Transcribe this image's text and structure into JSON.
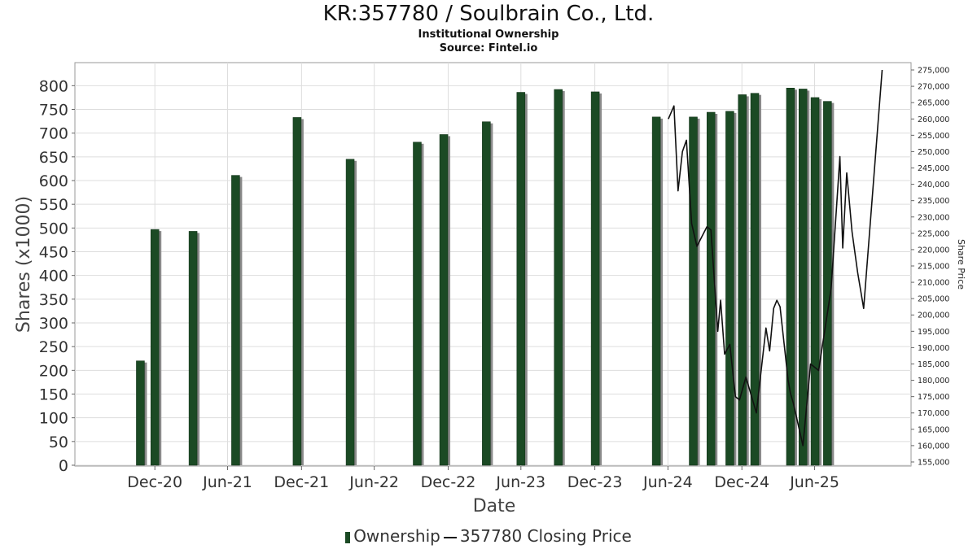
{
  "header": {
    "title": "KR:357780 / Soulbrain Co., Ltd.",
    "subtitle": "Institutional Ownership",
    "source": "Source: Fintel.io"
  },
  "colors": {
    "bar": "#1b4a24",
    "bar_shadow": "#8a8a8a",
    "line": "#111111",
    "grid": "#dddddd"
  },
  "chart_data": {
    "type": "bar",
    "xlabel": "Date",
    "ylabel": "Shares (x1000)",
    "y2label": "Share Price",
    "ylim": [
      0,
      840
    ],
    "y_ticks": [
      0,
      50,
      100,
      150,
      200,
      250,
      300,
      350,
      400,
      450,
      500,
      550,
      600,
      650,
      700,
      750,
      800
    ],
    "y2lim": [
      154000,
      276000
    ],
    "y2_ticks": [
      "155,000",
      "160,000",
      "165,000",
      "170,000",
      "175,000",
      "180,000",
      "185,000",
      "190,000",
      "195,000",
      "200,000",
      "205,000",
      "210,000",
      "215,000",
      "220,000",
      "225,000",
      "230,000",
      "235,000",
      "240,000",
      "245,000",
      "250,000",
      "255,000",
      "260,000",
      "265,000",
      "270,000",
      "275,000"
    ],
    "x_range": [
      "2020-06-15",
      "2026-02-25"
    ],
    "x_ticks": [
      {
        "date": "2020-12-31",
        "label": "Dec-20"
      },
      {
        "date": "2021-06-30",
        "label": "Jun-21"
      },
      {
        "date": "2021-12-31",
        "label": "Dec-21"
      },
      {
        "date": "2022-06-30",
        "label": "Jun-22"
      },
      {
        "date": "2022-12-31",
        "label": "Dec-22"
      },
      {
        "date": "2023-06-30",
        "label": "Jun-23"
      },
      {
        "date": "2023-12-31",
        "label": "Dec-23"
      },
      {
        "date": "2024-06-30",
        "label": "Jun-24"
      },
      {
        "date": "2024-12-31",
        "label": "Dec-24"
      },
      {
        "date": "2025-06-30",
        "label": "Jun-25"
      }
    ],
    "grid": true,
    "legend_position": "bottom",
    "series": [
      {
        "name": "Ownership",
        "kind": "bar",
        "points": [
          {
            "date": "2020-11-25",
            "value": 220
          },
          {
            "date": "2020-12-31",
            "value": 497
          },
          {
            "date": "2021-04-05",
            "value": 493
          },
          {
            "date": "2021-07-20",
            "value": 611
          },
          {
            "date": "2021-12-20",
            "value": 733
          },
          {
            "date": "2022-05-01",
            "value": 645
          },
          {
            "date": "2022-10-15",
            "value": 681
          },
          {
            "date": "2022-12-20",
            "value": 697
          },
          {
            "date": "2023-04-05",
            "value": 724
          },
          {
            "date": "2023-06-30",
            "value": 786
          },
          {
            "date": "2023-10-01",
            "value": 792
          },
          {
            "date": "2024-01-01",
            "value": 787
          },
          {
            "date": "2024-06-01",
            "value": 734
          },
          {
            "date": "2024-09-01",
            "value": 734
          },
          {
            "date": "2024-10-15",
            "value": 744
          },
          {
            "date": "2024-12-01",
            "value": 746
          },
          {
            "date": "2025-01-01",
            "value": 781
          },
          {
            "date": "2025-02-01",
            "value": 784
          },
          {
            "date": "2025-05-01",
            "value": 795
          },
          {
            "date": "2025-06-01",
            "value": 793
          },
          {
            "date": "2025-07-01",
            "value": 775
          },
          {
            "date": "2025-08-01",
            "value": 767
          }
        ]
      },
      {
        "name": "357780 Closing Price",
        "kind": "line",
        "points": [
          {
            "date": "2024-07-01",
            "value": 260000
          },
          {
            "date": "2024-07-15",
            "value": 264000
          },
          {
            "date": "2024-07-25",
            "value": 238000
          },
          {
            "date": "2024-08-05",
            "value": 250000
          },
          {
            "date": "2024-08-15",
            "value": 253500
          },
          {
            "date": "2024-08-28",
            "value": 228000
          },
          {
            "date": "2024-09-10",
            "value": 221000
          },
          {
            "date": "2024-10-05",
            "value": 227000
          },
          {
            "date": "2024-10-15",
            "value": 226000
          },
          {
            "date": "2024-11-01",
            "value": 195000
          },
          {
            "date": "2024-11-08",
            "value": 204500
          },
          {
            "date": "2024-11-18",
            "value": 188000
          },
          {
            "date": "2024-12-01",
            "value": 191000
          },
          {
            "date": "2024-12-15",
            "value": 175000
          },
          {
            "date": "2024-12-25",
            "value": 174000
          },
          {
            "date": "2025-01-10",
            "value": 181000
          },
          {
            "date": "2025-02-05",
            "value": 170000
          },
          {
            "date": "2025-03-01",
            "value": 196000
          },
          {
            "date": "2025-03-10",
            "value": 189000
          },
          {
            "date": "2025-03-20",
            "value": 202000
          },
          {
            "date": "2025-03-28",
            "value": 204500
          },
          {
            "date": "2025-04-05",
            "value": 202500
          },
          {
            "date": "2025-04-25",
            "value": 180000
          },
          {
            "date": "2025-05-01",
            "value": 176000
          },
          {
            "date": "2025-05-08",
            "value": 173000
          },
          {
            "date": "2025-06-01",
            "value": 160000
          },
          {
            "date": "2025-06-20",
            "value": 185000
          },
          {
            "date": "2025-07-10",
            "value": 183000
          },
          {
            "date": "2025-08-10",
            "value": 208000
          },
          {
            "date": "2025-09-01",
            "value": 248500
          },
          {
            "date": "2025-09-08",
            "value": 220500
          },
          {
            "date": "2025-09-18",
            "value": 243500
          },
          {
            "date": "2025-10-01",
            "value": 225500
          },
          {
            "date": "2025-10-15",
            "value": 213000
          },
          {
            "date": "2025-10-30",
            "value": 202000
          },
          {
            "date": "2025-12-15",
            "value": 275000
          }
        ]
      }
    ]
  }
}
